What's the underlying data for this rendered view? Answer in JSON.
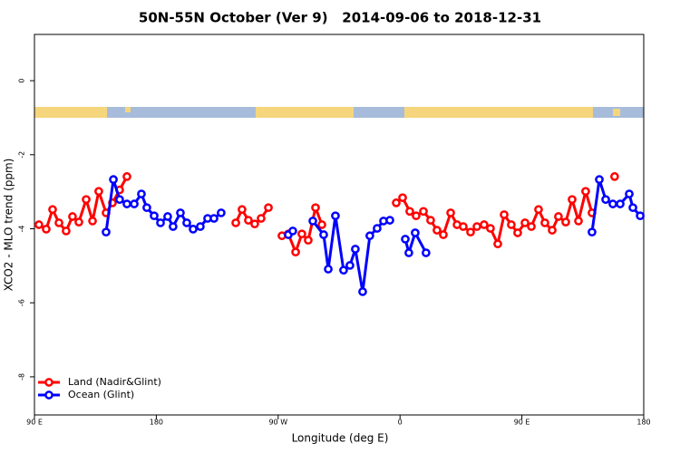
{
  "chart_data": {
    "type": "line",
    "title": "50N-55N October (Ver 9)   2014-09-06 to 2018-12-31",
    "x_label": "Longitude (deg E)",
    "y_label": "XCO2 - MLO trend (ppm)",
    "xlim": [
      90,
      540
    ],
    "xticks": [
      {
        "value": 90,
        "label": "90 E"
      },
      {
        "value": 180,
        "label": "180"
      },
      {
        "value": 270,
        "label": "90 W"
      },
      {
        "value": 360,
        "label": "0"
      },
      {
        "value": 450,
        "label": "90 E"
      },
      {
        "value": 540,
        "label": "180"
      }
    ],
    "ylim": [
      -9.03,
      1.25
    ],
    "yticks": [
      0,
      -2,
      -4,
      -6,
      -8
    ],
    "legend": "bottom-left",
    "series": [
      {
        "name": "Land (Nadir&Glint)",
        "color": "#ff0000",
        "x": [
          93.3,
          98.7,
          103.4,
          108.1,
          113.4,
          118.1,
          122.8,
          128.2,
          132.9,
          137.5,
          142.9,
          147.6,
          152.9,
          158.3,
          null,
          238.7,
          243.3,
          248.0,
          252.7,
          257.4,
          262.8,
          null,
          272.8,
          277.5,
          282.9,
          287.5,
          292.2,
          297.6,
          302.3,
          null,
          357.2,
          361.9,
          367.2,
          371.9,
          377.3,
          382.6,
          387.3,
          392.0,
          397.4,
          402.1,
          406.7,
          412.1,
          416.8,
          422.1,
          426.8,
          432.2,
          436.9,
          442.2,
          446.9,
          452.3,
          457.0,
          462.3,
          467.0,
          472.4,
          477.0,
          482.4,
          487.1,
          491.8,
          497.1,
          501.8,
          null,
          518.5
        ],
        "values": [
          -3.89,
          -4.01,
          -3.48,
          -3.84,
          -4.06,
          -3.67,
          -3.82,
          -3.21,
          -3.79,
          -2.99,
          -3.57,
          -3.3,
          -2.95,
          -2.59,
          null,
          -3.84,
          -3.48,
          -3.77,
          -3.87,
          -3.72,
          -3.43,
          null,
          -4.19,
          -4.14,
          -4.63,
          -4.14,
          -4.31,
          -3.43,
          -3.89,
          null,
          -3.3,
          -3.16,
          -3.53,
          -3.65,
          -3.53,
          -3.77,
          -4.04,
          -4.16,
          -3.57,
          -3.89,
          -3.94,
          -4.09,
          -3.94,
          -3.89,
          -3.99,
          -4.41,
          -3.62,
          -3.89,
          -4.11,
          -3.84,
          -3.94,
          -3.48,
          -3.84,
          -4.04,
          -3.67,
          -3.82,
          -3.21,
          -3.79,
          -2.99,
          -3.57,
          null,
          -2.59
        ]
      },
      {
        "name": "Ocean (Glint)",
        "color": "#0000ff",
        "x": [
          142.9,
          148.3,
          152.9,
          158.3,
          163.7,
          169.0,
          173.0,
          178.4,
          183.1,
          188.4,
          192.4,
          197.8,
          202.5,
          207.2,
          212.5,
          217.9,
          222.6,
          227.9,
          null,
          277.5,
          280.8,
          null,
          295.6,
          303.6,
          307.0,
          312.3,
          318.3,
          323.0,
          327.0,
          332.4,
          337.7,
          343.1,
          347.8,
          352.5,
          null,
          363.9,
          366.5,
          371.2,
          379.2,
          null,
          501.8,
          507.2,
          511.9,
          517.2,
          522.6,
          529.3,
          532.0,
          537.4
        ],
        "values": [
          -4.09,
          -2.67,
          -3.21,
          -3.33,
          -3.33,
          -3.06,
          -3.43,
          -3.65,
          -3.84,
          -3.67,
          -3.94,
          -3.57,
          -3.84,
          -4.01,
          -3.94,
          -3.72,
          -3.72,
          -3.57,
          null,
          -4.16,
          -4.06,
          null,
          -3.79,
          -4.16,
          -5.09,
          -3.65,
          -5.12,
          -4.99,
          -4.55,
          -5.7,
          -4.19,
          -3.99,
          -3.79,
          -3.77,
          null,
          -4.28,
          -4.65,
          -4.11,
          -4.65,
          null,
          -4.09,
          -2.67,
          -3.21,
          -3.33,
          -3.33,
          -3.06,
          -3.43,
          -3.65
        ]
      }
    ]
  }
}
